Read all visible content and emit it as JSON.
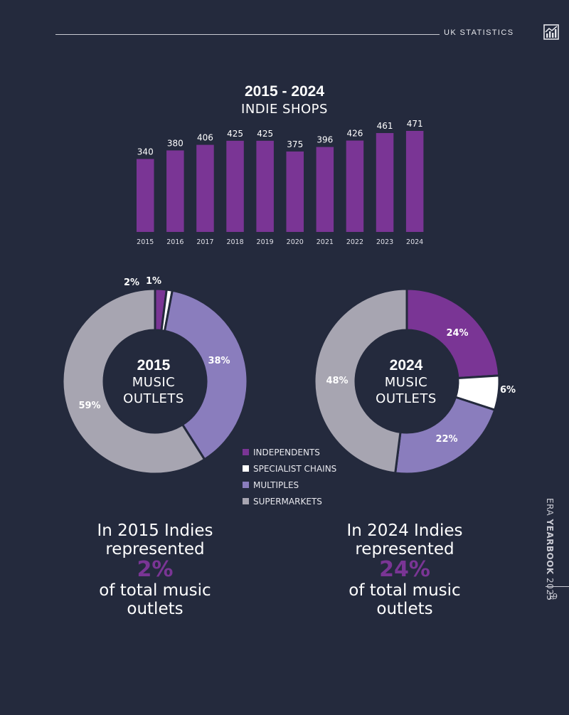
{
  "header": {
    "section_label": "UK STATISTICS",
    "icon": "chart-icon"
  },
  "bar_chart": {
    "title": "2015 - 2024",
    "subtitle": "INDIE SHOPS"
  },
  "chart_data": [
    {
      "type": "bar",
      "title": "2015 - 2024",
      "subtitle": "INDIE SHOPS",
      "categories": [
        "2015",
        "2016",
        "2017",
        "2018",
        "2019",
        "2020",
        "2021",
        "2022",
        "2023",
        "2024"
      ],
      "values": [
        340,
        380,
        406,
        425,
        425,
        375,
        396,
        426,
        461,
        471
      ],
      "color": "#7a3595",
      "ylim": [
        0,
        471
      ]
    },
    {
      "type": "pie",
      "title": "2015",
      "subtitle": "MUSIC OUTLETS",
      "labels": [
        "INDEPENDENTS",
        "SPECIALIST CHAINS",
        "MULTIPLES",
        "SUPERMARKETS"
      ],
      "values": [
        2,
        1,
        38,
        59
      ],
      "value_labels": [
        "2%",
        "1%",
        "38%",
        "59%"
      ],
      "colors": [
        "#7a3595",
        "#ffffff",
        "#8a7dbd",
        "#a7a5b1"
      ]
    },
    {
      "type": "pie",
      "title": "2024",
      "subtitle": "MUSIC OUTLETS",
      "labels": [
        "INDEPENDENTS",
        "SPECIALIST CHAINS",
        "MULTIPLES",
        "SUPERMARKETS"
      ],
      "values": [
        24,
        6,
        22,
        48
      ],
      "value_labels": [
        "24%",
        "6%",
        "22%",
        "48%"
      ],
      "colors": [
        "#7a3595",
        "#ffffff",
        "#8a7dbd",
        "#a7a5b1"
      ]
    }
  ],
  "donut_2015": {
    "year": "2015",
    "line1": "MUSIC",
    "line2": "OUTLETS"
  },
  "donut_2024": {
    "year": "2024",
    "line1": "MUSIC",
    "line2": "OUTLETS"
  },
  "legend": [
    {
      "label": "INDEPENDENTS",
      "color": "#7a3595"
    },
    {
      "label": "SPECIALIST CHAINS",
      "color": "#ffffff"
    },
    {
      "label": "MULTIPLES",
      "color": "#8a7dbd"
    },
    {
      "label": "SUPERMARKETS",
      "color": "#a7a5b1"
    }
  ],
  "stat_2015": {
    "line1": "In 2015 Indies",
    "line2": "represented",
    "value": "2%",
    "line3": "of total music",
    "line4": "outlets"
  },
  "stat_2024": {
    "line1": "In 2024 Indies",
    "line2": "represented",
    "value": "24%",
    "line3": "of total music",
    "line4": "outlets"
  },
  "footer": {
    "side_prefix": "ERA ",
    "side_bold": "YEARBOOK",
    "side_suffix": " 2025",
    "page_number": "19"
  }
}
